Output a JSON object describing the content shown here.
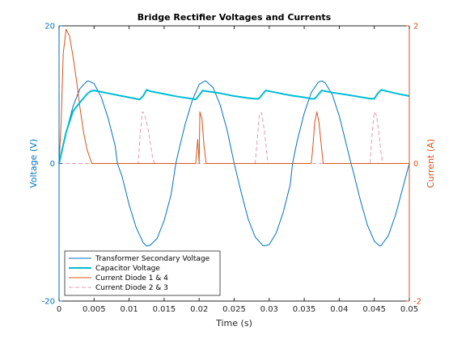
{
  "chart_data": {
    "type": "line",
    "title": "Bridge Rectifier Voltages and Currents",
    "xlabel": "Time (s)",
    "ylabel_left": "Voltage (V)",
    "ylabel_right": "Current (A)",
    "xlim": [
      0,
      0.05
    ],
    "ylim_left": [
      -20,
      20
    ],
    "ylim_right": [
      -2,
      2
    ],
    "x_ticks": [
      0,
      0.005,
      0.01,
      0.015,
      0.02,
      0.025,
      0.03,
      0.035,
      0.04,
      0.045,
      0.05
    ],
    "x_tick_labels": [
      "0",
      "0.005",
      "0.01",
      "0.015",
      "0.02",
      "0.025",
      "0.03",
      "0.035",
      "0.04",
      "0.045",
      "0.05"
    ],
    "y_left_ticks": [
      -20,
      0,
      20
    ],
    "y_left_tick_labels": [
      "-20",
      "0",
      "20"
    ],
    "y_right_ticks": [
      -2,
      0,
      2
    ],
    "y_right_tick_labels": [
      "-2",
      "0",
      "2"
    ],
    "grid": false,
    "legend_position": "bottom-left",
    "colors": {
      "left_axis": "#0072BD",
      "right_axis": "#D95319",
      "capacitor": "#00BCD4",
      "diode23": "#E89AB0"
    },
    "series": [
      {
        "name": "Transformer Secondary Voltage",
        "axis": "left",
        "style": "solid-thin",
        "x": [
          0,
          0.001,
          0.002,
          0.003,
          0.004,
          0.00417,
          0.005,
          0.006,
          0.007,
          0.008,
          0.00833,
          0.009,
          0.01,
          0.011,
          0.012,
          0.0125,
          0.013,
          0.014,
          0.015,
          0.016,
          0.01667,
          0.017,
          0.018,
          0.019,
          0.02,
          0.02083,
          0.021,
          0.022,
          0.023,
          0.024,
          0.025,
          0.026,
          0.027,
          0.028,
          0.02917,
          0.03,
          0.031,
          0.032,
          0.033,
          0.03333,
          0.034,
          0.035,
          0.036,
          0.037,
          0.0375,
          0.038,
          0.039,
          0.04,
          0.041,
          0.04167,
          0.042,
          0.043,
          0.044,
          0.045,
          0.0458,
          0.046,
          0.047,
          0.048,
          0.049,
          0.05
        ],
        "y": [
          0,
          4.5,
          8.3,
          10.9,
          11.95,
          12.0,
          11.6,
          9.7,
          6.6,
          2.6,
          0,
          -1.9,
          -6.0,
          -9.3,
          -11.5,
          -12.0,
          -11.9,
          -10.9,
          -8.3,
          -4.5,
          0,
          1.5,
          5.7,
          9.1,
          11.5,
          12.0,
          11.95,
          11.0,
          8.5,
          4.8,
          0,
          -4.2,
          -8.1,
          -10.7,
          -12.0,
          -11.8,
          -10.1,
          -7.1,
          -3.1,
          0,
          3.3,
          7.3,
          10.3,
          11.8,
          12.0,
          11.7,
          10.0,
          6.9,
          2.8,
          0,
          -1.2,
          -5.3,
          -8.9,
          -11.3,
          -12.0,
          -11.9,
          -10.5,
          -7.6,
          -3.8,
          0
        ]
      },
      {
        "name": "Capacitor Voltage",
        "axis": "left",
        "style": "solid-thick",
        "x": [
          0,
          0.001,
          0.002,
          0.003,
          0.004,
          0.0045,
          0.005,
          0.007,
          0.009,
          0.011,
          0.0115,
          0.012,
          0.0125,
          0.013,
          0.015,
          0.017,
          0.019,
          0.0195,
          0.02,
          0.0205,
          0.021,
          0.023,
          0.025,
          0.027,
          0.028,
          0.0285,
          0.029,
          0.0295,
          0.031,
          0.033,
          0.035,
          0.036,
          0.0365,
          0.037,
          0.0375,
          0.039,
          0.041,
          0.0445,
          0.045,
          0.0455,
          0.046,
          0.048,
          0.05
        ],
        "y": [
          0,
          4.5,
          7.6,
          8.9,
          10.1,
          10.5,
          10.6,
          10.2,
          9.8,
          9.4,
          9.3,
          9.8,
          10.7,
          10.5,
          10.1,
          9.7,
          9.4,
          9.3,
          9.9,
          10.6,
          10.5,
          10.2,
          9.8,
          9.5,
          9.4,
          9.4,
          10.0,
          10.6,
          10.3,
          9.9,
          9.6,
          9.4,
          9.4,
          10.0,
          10.6,
          10.3,
          10.0,
          9.4,
          9.4,
          10.2,
          10.7,
          10.2,
          9.8
        ]
      },
      {
        "name": "Current Diode 1 & 4",
        "axis": "right",
        "style": "solid-thin",
        "x": [
          0,
          0.0003,
          0.0006,
          0.001,
          0.0015,
          0.002,
          0.0025,
          0.003,
          0.0035,
          0.004,
          0.0045,
          0.0047,
          0.02,
          0.0195,
          0.0198,
          0.0201,
          0.0204,
          0.0207,
          0.021,
          0.036,
          0.0362,
          0.0365,
          0.0368,
          0.0371,
          0.0374,
          0.0377,
          0.05
        ],
        "y": [
          0,
          0.6,
          1.6,
          1.95,
          1.85,
          1.55,
          1.2,
          0.8,
          0.45,
          0.2,
          0.05,
          0,
          0,
          0,
          0.35,
          0.75,
          0.65,
          0.25,
          0,
          0,
          0.2,
          0.6,
          0.75,
          0.6,
          0.3,
          0,
          0
        ]
      },
      {
        "name": "Current Diode 2 & 3",
        "axis": "right",
        "style": "dashed",
        "x": [
          0,
          0.0113,
          0.0116,
          0.0119,
          0.0122,
          0.0125,
          0.0128,
          0.0131,
          0.0134,
          0.0137,
          0.028,
          0.0283,
          0.0286,
          0.0289,
          0.0292,
          0.0295,
          0.0298,
          0.0444,
          0.0447,
          0.045,
          0.0453,
          0.0456,
          0.0459,
          0.0462,
          0.05
        ],
        "y": [
          0,
          0,
          0.45,
          0.75,
          0.72,
          0.6,
          0.45,
          0.25,
          0.05,
          0,
          0,
          0.35,
          0.72,
          0.74,
          0.55,
          0.3,
          0,
          0,
          0.45,
          0.75,
          0.7,
          0.5,
          0.2,
          0,
          0
        ]
      }
    ]
  }
}
